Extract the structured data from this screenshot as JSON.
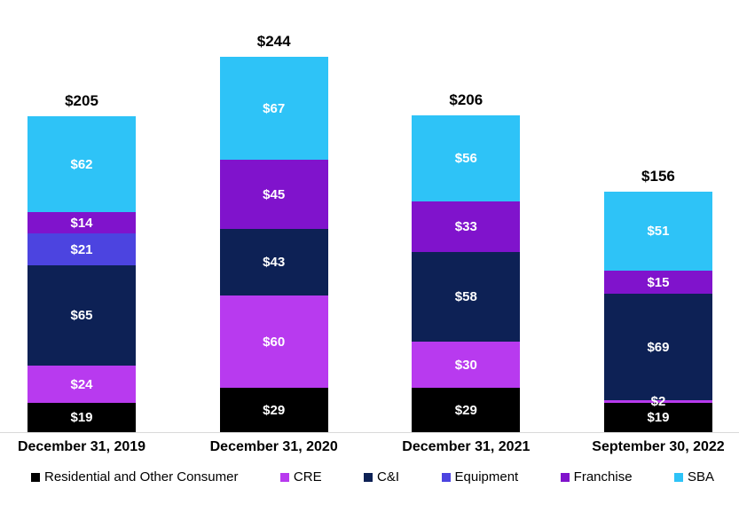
{
  "chart_data": {
    "type": "bar",
    "stacked": true,
    "title": "",
    "xlabel": "",
    "ylabel": "",
    "grid": false,
    "legend_position": "bottom",
    "value_prefix": "$",
    "categories": [
      "December 31, 2019",
      "December 31, 2020",
      "December 31, 2021",
      "September 30, 2022"
    ],
    "series": [
      {
        "name": "Residential and Other Consumer",
        "color": "#000000",
        "values": [
          19,
          29,
          29,
          19
        ]
      },
      {
        "name": "CRE",
        "color": "#b83aef",
        "values": [
          24,
          60,
          30,
          2
        ]
      },
      {
        "name": "C&I",
        "color": "#0d2155",
        "values": [
          65,
          43,
          58,
          69
        ]
      },
      {
        "name": "Equipment",
        "color": "#4c44e0",
        "values": [
          21,
          0,
          0,
          0
        ]
      },
      {
        "name": "Franchise",
        "color": "#8013cc",
        "values": [
          14,
          45,
          33,
          15
        ]
      },
      {
        "name": "SBA",
        "color": "#2ec3f7",
        "values": [
          62,
          67,
          56,
          51
        ]
      }
    ],
    "totals": [
      205,
      244,
      206,
      156
    ],
    "axis_line_color": "#d9d9d9"
  }
}
